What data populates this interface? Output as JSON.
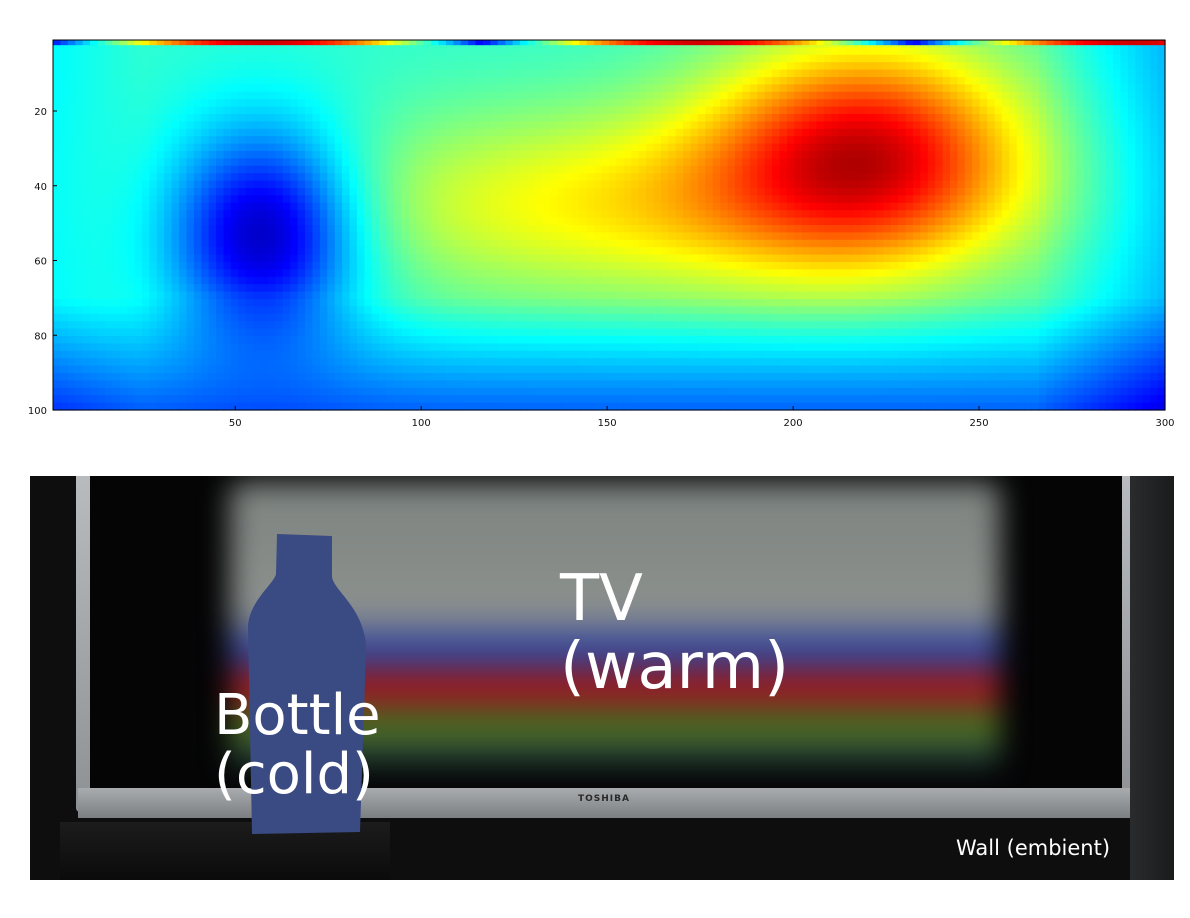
{
  "chart_data": {
    "type": "heatmap",
    "title": "",
    "xlabel": "",
    "ylabel": "",
    "xlim": [
      1,
      300
    ],
    "ylim": [
      100,
      1
    ],
    "x_ticks": [
      50,
      100,
      150,
      200,
      250,
      300
    ],
    "y_ticks": [
      20,
      40,
      60,
      80,
      100
    ],
    "colormap": "jet",
    "grid": false,
    "legend": "none",
    "hotspots": [
      {
        "name": "cold",
        "x": 58,
        "y": 52,
        "value": 0.0
      },
      {
        "name": "warm",
        "x": 220,
        "y": 30,
        "value": 1.0
      }
    ]
  },
  "photo": {
    "labels": {
      "tv": "TV\n(warm)",
      "bottle": "Bottle\n(cold)",
      "wall": "Wall (embient)"
    },
    "tv_brand": "TOSHIBA",
    "colors": {
      "bottle": "#3a4a82",
      "tv_frame": "#a7aaad",
      "background": "#0e0e0f"
    }
  }
}
